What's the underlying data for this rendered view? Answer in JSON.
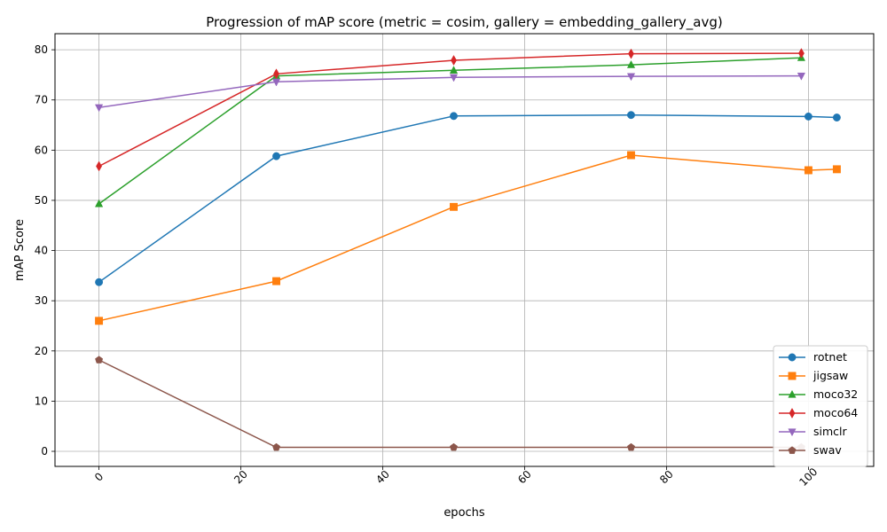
{
  "chart_data": {
    "type": "line",
    "title": "Progression of mAP score (metric = cosim, gallery = embedding_gallery_avg)",
    "xlabel": "epochs",
    "ylabel": "mAP Score",
    "xlim": [
      -6.2,
      109.2
    ],
    "ylim": [
      -3,
      83.2
    ],
    "x_ticks": [
      0,
      20,
      40,
      60,
      80,
      100
    ],
    "y_ticks": [
      0,
      10,
      20,
      30,
      40,
      50,
      60,
      70,
      80
    ],
    "x_tick_labels": [
      "0",
      "20",
      "40",
      "60",
      "80",
      "100"
    ],
    "y_tick_labels": [
      "0",
      "10",
      "20",
      "30",
      "40",
      "50",
      "60",
      "70",
      "80"
    ],
    "grid": true,
    "legend_position": "lower-right",
    "series": [
      {
        "name": "rotnet",
        "color": "#1f77b4",
        "marker": "circle",
        "x": [
          0,
          25,
          50,
          75,
          100,
          104
        ],
        "y": [
          33.7,
          58.8,
          66.8,
          67.0,
          66.7,
          66.5
        ]
      },
      {
        "name": "jigsaw",
        "color": "#ff7f0e",
        "marker": "square",
        "x": [
          0,
          25,
          50,
          75,
          100,
          104
        ],
        "y": [
          26.0,
          33.9,
          48.7,
          59.0,
          56.0,
          56.2
        ]
      },
      {
        "name": "moco32",
        "color": "#2ca02c",
        "marker": "triangle-up",
        "x": [
          0,
          25,
          50,
          75,
          99
        ],
        "y": [
          49.3,
          74.8,
          75.9,
          77.0,
          78.4
        ]
      },
      {
        "name": "moco64",
        "color": "#d62728",
        "marker": "diamond",
        "x": [
          0,
          25,
          50,
          75,
          99
        ],
        "y": [
          56.8,
          75.2,
          77.9,
          79.2,
          79.3
        ]
      },
      {
        "name": "simclr",
        "color": "#9467bd",
        "marker": "triangle-down",
        "x": [
          0,
          25,
          50,
          75,
          99
        ],
        "y": [
          68.5,
          73.6,
          74.5,
          74.7,
          74.8
        ]
      },
      {
        "name": "swav",
        "color": "#8c564b",
        "marker": "pentagon",
        "x": [
          0,
          25,
          50,
          75,
          99
        ],
        "y": [
          18.2,
          0.8,
          0.8,
          0.8,
          0.8
        ]
      }
    ]
  }
}
